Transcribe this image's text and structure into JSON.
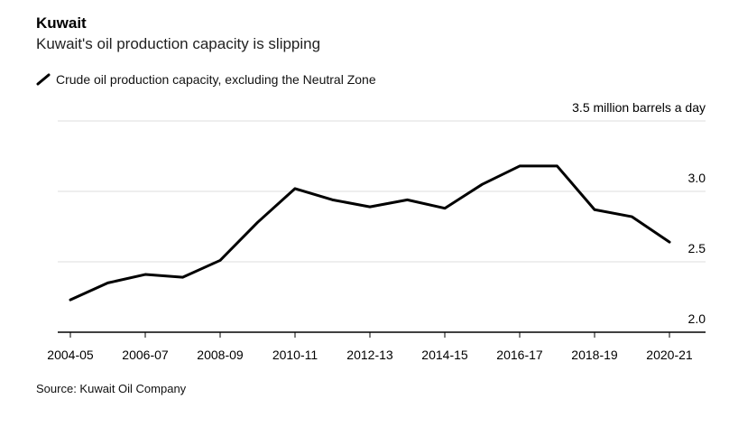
{
  "title": "Kuwait",
  "subtitle": "Kuwait's oil production capacity is slipping",
  "legend_label": "Crude oil production capacity, excluding the Neutral Zone",
  "source": "Source: Kuwait Oil Company",
  "colors": {
    "line": "#000000",
    "grid": "#dcdcdc",
    "axis": "#000000"
  },
  "chart_data": {
    "type": "line",
    "title": "Kuwait",
    "subtitle": "Kuwait's oil production capacity is slipping",
    "ylabel_unit": "million barrels a day",
    "ylim": [
      2.0,
      3.5
    ],
    "yticks": [
      2.0,
      2.5,
      3.0,
      3.5
    ],
    "ytick_labels": [
      "2.0",
      "2.5",
      "3.0",
      "3.5 million barrels a day"
    ],
    "xtick_labels": [
      "2004-05",
      "2006-07",
      "2008-09",
      "2010-11",
      "2012-13",
      "2014-15",
      "2016-17",
      "2018-19",
      "2020-21"
    ],
    "categories": [
      "2004-05",
      "2005-06",
      "2006-07",
      "2007-08",
      "2008-09",
      "2009-10",
      "2010-11",
      "2011-12",
      "2012-13",
      "2013-14",
      "2014-15",
      "2015-16",
      "2016-17",
      "2017-18",
      "2018-19",
      "2019-20",
      "2020-21"
    ],
    "series": [
      {
        "name": "Crude oil production capacity, excluding the Neutral Zone",
        "values": [
          2.23,
          2.35,
          2.41,
          2.39,
          2.51,
          2.78,
          3.02,
          2.94,
          2.89,
          2.94,
          2.88,
          3.05,
          3.18,
          3.18,
          2.87,
          2.82,
          2.64
        ]
      }
    ],
    "grid": true,
    "legend_position": "top-left"
  }
}
